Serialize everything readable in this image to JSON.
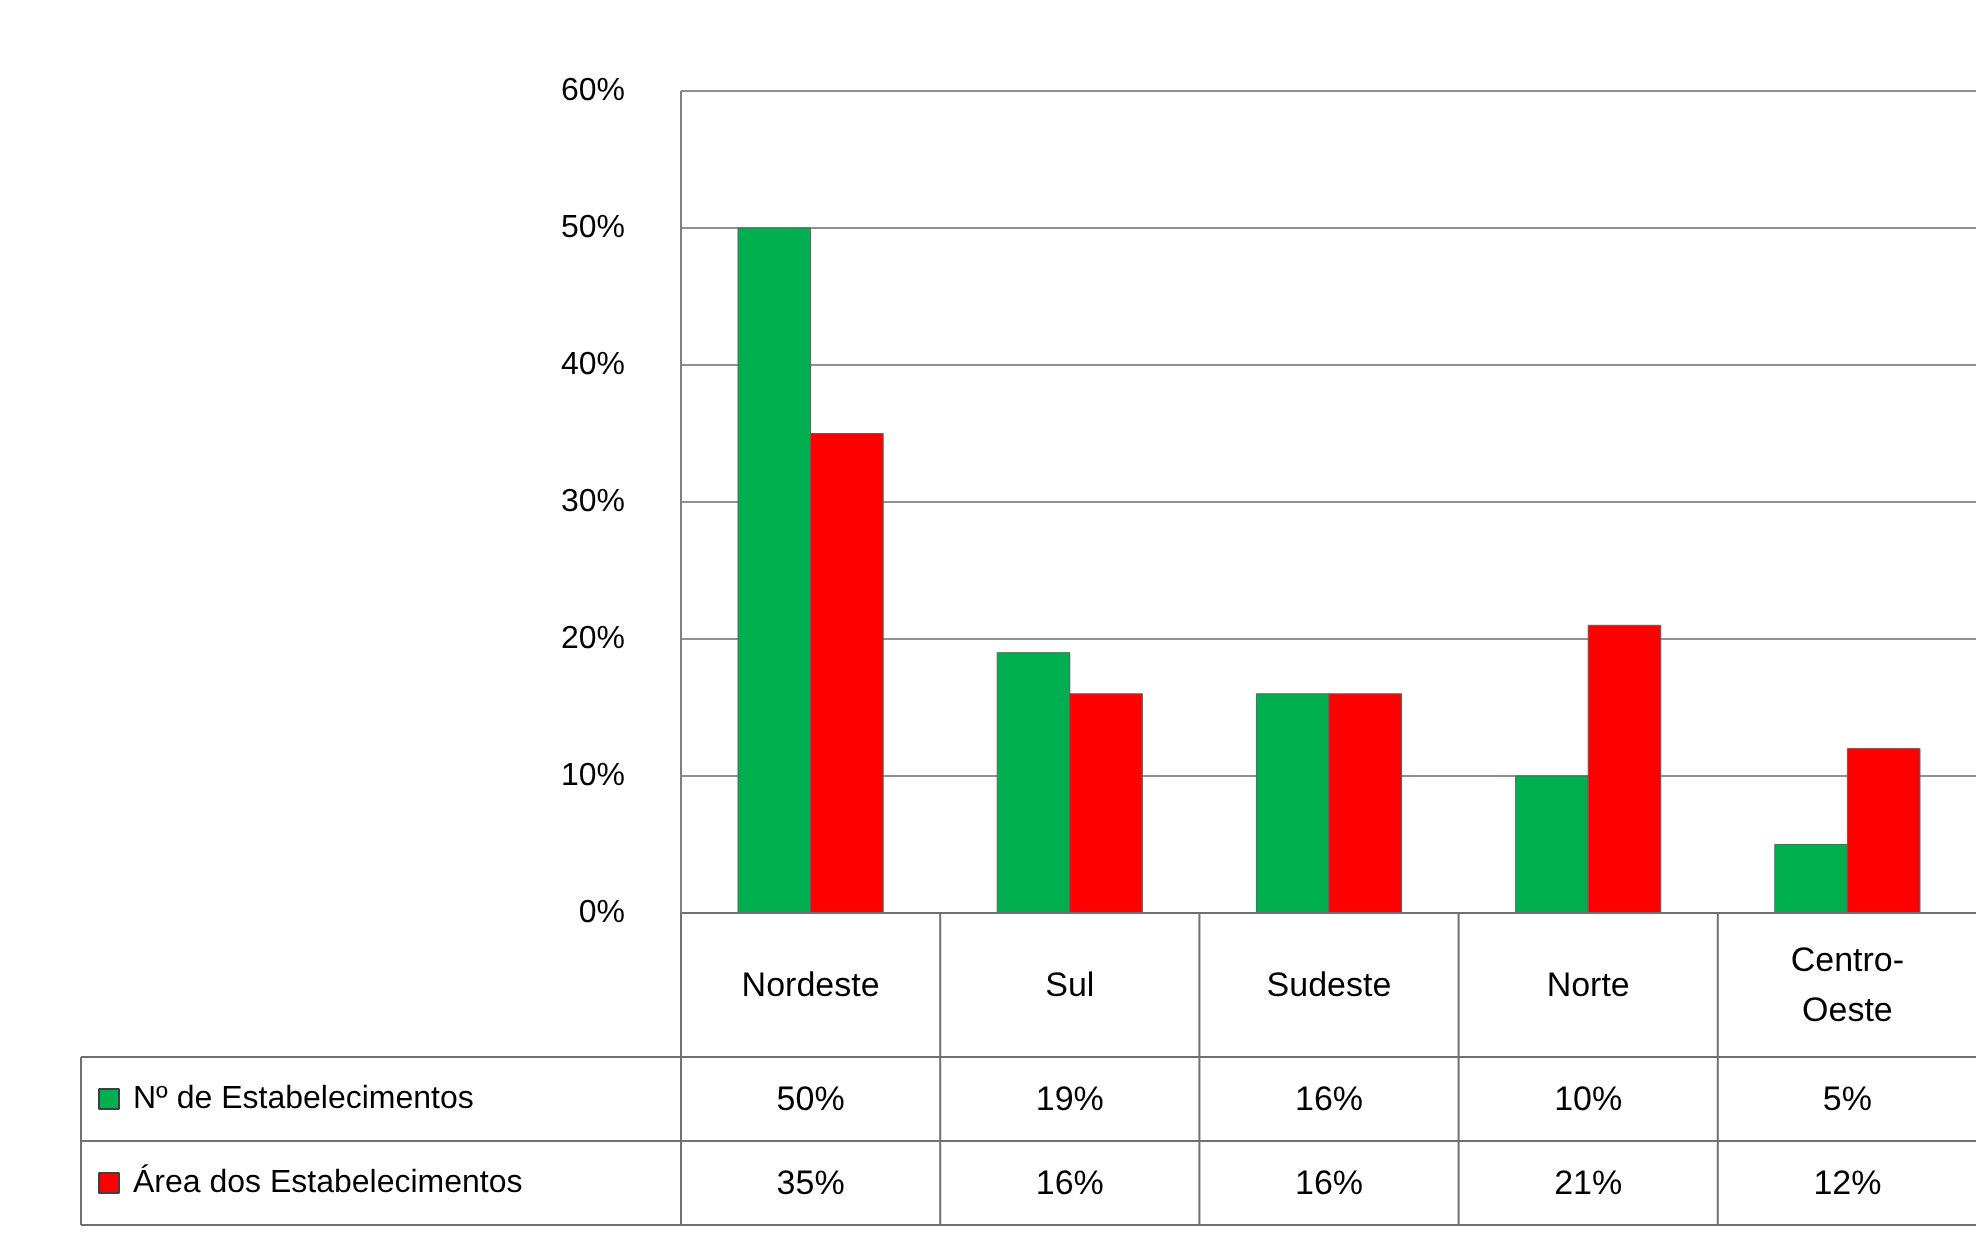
{
  "chart_data": {
    "type": "bar",
    "categories": [
      "Nordeste",
      "Sul",
      "Sudeste",
      "Norte",
      "Centro-Oeste"
    ],
    "series": [
      {
        "name": "Nº de Estabelecimentos",
        "color": "#00b050",
        "values": [
          50,
          19,
          16,
          10,
          5
        ],
        "value_labels": [
          "50%",
          "19%",
          "16%",
          "10%",
          "5%"
        ]
      },
      {
        "name": "Área dos Estabelecimentos",
        "color": "#ff0000",
        "values": [
          35,
          16,
          16,
          21,
          12
        ],
        "value_labels": [
          "35%",
          "16%",
          "16%",
          "21%",
          "12%"
        ]
      }
    ],
    "ylim": [
      0,
      60
    ],
    "yticks": [
      {
        "value": 0,
        "label": "0%"
      },
      {
        "value": 10,
        "label": "10%"
      },
      {
        "value": 20,
        "label": "20%"
      },
      {
        "value": 30,
        "label": "30%"
      },
      {
        "value": 40,
        "label": "40%"
      },
      {
        "value": 50,
        "label": "50%"
      },
      {
        "value": 60,
        "label": "60%"
      }
    ],
    "grid": "y",
    "legend": "bottom"
  }
}
